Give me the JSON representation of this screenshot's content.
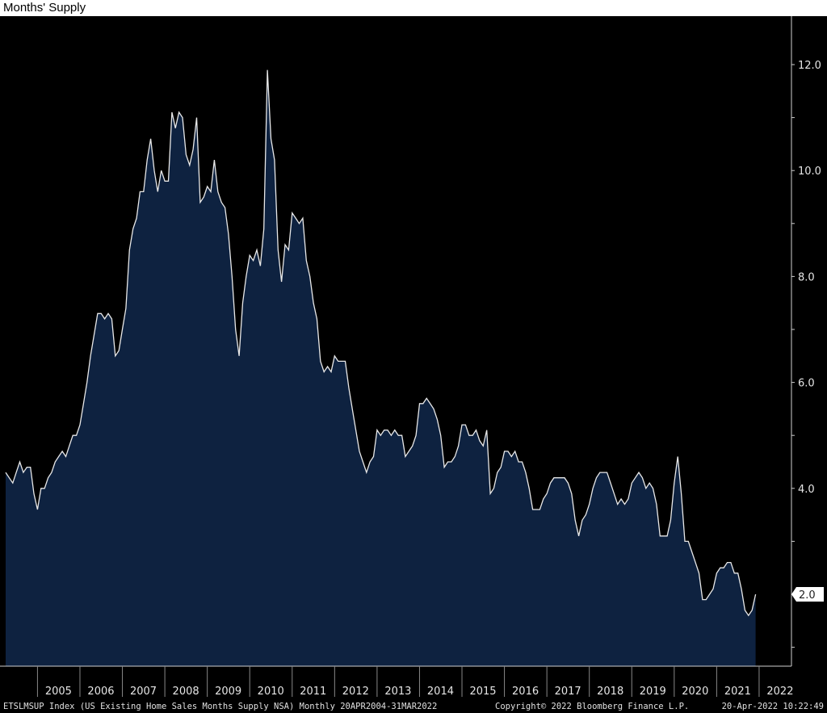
{
  "chart_data": {
    "type": "area",
    "title": "Months' Supply",
    "start_month": "2004-04",
    "end_month": "2022-03",
    "frequency": "monthly",
    "values": [
      4.3,
      4.2,
      4.1,
      4.3,
      4.5,
      4.3,
      4.4,
      4.4,
      3.9,
      3.6,
      4.0,
      4.0,
      4.2,
      4.3,
      4.5,
      4.6,
      4.7,
      4.6,
      4.8,
      5.0,
      5.0,
      5.2,
      5.6,
      6.0,
      6.5,
      6.9,
      7.3,
      7.3,
      7.2,
      7.3,
      7.2,
      6.5,
      6.6,
      7.0,
      7.4,
      8.5,
      8.9,
      9.1,
      9.6,
      9.6,
      10.2,
      10.6,
      10.0,
      9.6,
      10.0,
      9.8,
      9.8,
      11.1,
      10.8,
      11.1,
      11.0,
      10.3,
      10.1,
      10.4,
      11.0,
      9.4,
      9.5,
      9.7,
      9.6,
      10.2,
      9.6,
      9.4,
      9.3,
      8.8,
      8.0,
      7.0,
      6.5,
      7.5,
      8.0,
      8.4,
      8.3,
      8.5,
      8.2,
      8.9,
      11.9,
      10.6,
      10.2,
      8.5,
      7.9,
      8.6,
      8.5,
      9.2,
      9.1,
      9.0,
      9.1,
      8.3,
      8.0,
      7.5,
      7.2,
      6.4,
      6.2,
      6.3,
      6.2,
      6.5,
      6.4,
      6.4,
      6.4,
      5.9,
      5.5,
      5.1,
      4.7,
      4.5,
      4.3,
      4.5,
      4.6,
      5.1,
      5.0,
      5.1,
      5.1,
      5.0,
      5.1,
      5.0,
      5.0,
      4.6,
      4.7,
      4.8,
      5.0,
      5.6,
      5.6,
      5.7,
      5.6,
      5.5,
      5.3,
      5.0,
      4.4,
      4.5,
      4.5,
      4.6,
      4.8,
      5.2,
      5.2,
      5.0,
      5.0,
      5.1,
      4.9,
      4.8,
      5.1,
      3.9,
      4.0,
      4.3,
      4.4,
      4.7,
      4.7,
      4.6,
      4.7,
      4.5,
      4.5,
      4.3,
      4.0,
      3.6,
      3.6,
      3.6,
      3.8,
      3.9,
      4.1,
      4.2,
      4.2,
      4.2,
      4.2,
      4.1,
      3.9,
      3.4,
      3.1,
      3.4,
      3.5,
      3.7,
      4.0,
      4.2,
      4.3,
      4.3,
      4.3,
      4.1,
      3.9,
      3.7,
      3.8,
      3.7,
      3.8,
      4.1,
      4.2,
      4.3,
      4.2,
      4.0,
      4.1,
      4.0,
      3.7,
      3.1,
      3.1,
      3.1,
      3.4,
      4.1,
      4.6,
      3.9,
      3.0,
      3.0,
      2.8,
      2.6,
      2.4,
      1.9,
      1.9,
      2.0,
      2.1,
      2.4,
      2.5,
      2.5,
      2.6,
      2.6,
      2.4,
      2.4,
      2.1,
      1.7,
      1.6,
      1.7,
      2.0
    ],
    "x_tick_labels": [
      "2005",
      "2006",
      "2007",
      "2008",
      "2009",
      "2010",
      "2011",
      "2012",
      "2013",
      "2014",
      "2015",
      "2016",
      "2017",
      "2018",
      "2019",
      "2020",
      "2021",
      "2022"
    ],
    "y_tick_labels": [
      "12.0",
      "10.0",
      "8.0",
      "6.0",
      "4.0"
    ],
    "y_ticks": [
      12,
      10,
      8,
      6,
      4
    ],
    "ylim": [
      0.65,
      13.1
    ],
    "last_value_label": "2.0",
    "last_value": 2.0,
    "y_axis_position": "right",
    "grid": false,
    "colors": {
      "background": "#000000",
      "fill": "#0e2240",
      "line": "#e8e8e8"
    }
  },
  "footer": {
    "series": "ETSLMSUP Index (US Existing Home Sales Months Supply NSA)  Monthly 20APR2004-31MAR2022",
    "copyright": "Copyright© 2022 Bloomberg Finance L.P.",
    "timestamp": "20-Apr-2022 10:22:49"
  }
}
